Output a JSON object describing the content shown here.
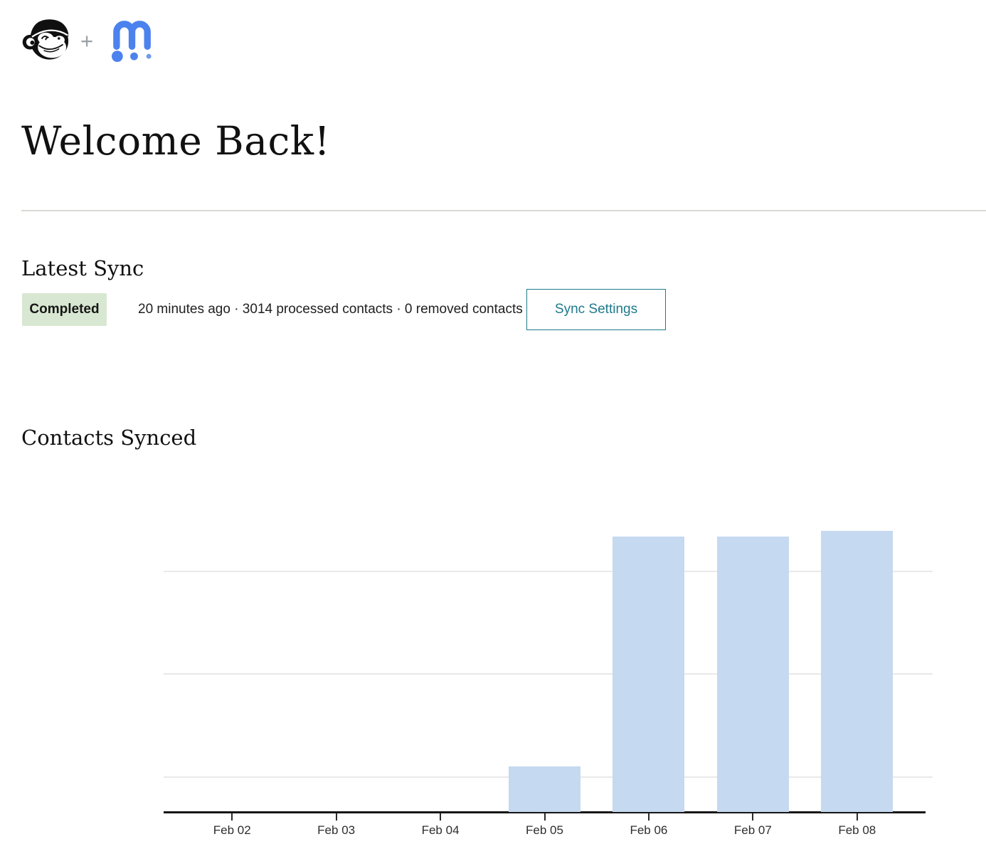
{
  "header": {
    "plus_sign": "+"
  },
  "page_title": "Welcome Back!",
  "latest_sync": {
    "heading": "Latest Sync",
    "badge_label": "Completed",
    "summary": "20 minutes ago · 3014 processed contacts · 0 removed contacts",
    "button_label": "Sync Settings"
  },
  "contacts_synced": {
    "heading": "Contacts Synced"
  },
  "chart_data": {
    "type": "bar",
    "title": "Contacts Synced",
    "categories": [
      "Feb 02",
      "Feb 03",
      "Feb 04",
      "Feb 05",
      "Feb 06",
      "Feb 07",
      "Feb 08"
    ],
    "values": [
      0,
      0,
      0,
      490,
      2950,
      2950,
      3014
    ],
    "xlabel": "",
    "ylabel": "",
    "ylim": [
      0,
      3720
    ],
    "gridline_values": [
      400,
      1500,
      2600
    ],
    "grid": true,
    "legend": false,
    "y_axis_labels_visible": false,
    "bar_color": "#c5d9f0"
  },
  "colors": {
    "accent_teal": "#1d7a8c",
    "badge_green_bg": "#d8e7d1",
    "logo_blue": "#4c82ee",
    "bar_fill": "#c5d9f0",
    "gridline_gray": "#e9e9e9",
    "divider_gray": "#d9d9d5",
    "axis_black": "#161616"
  }
}
